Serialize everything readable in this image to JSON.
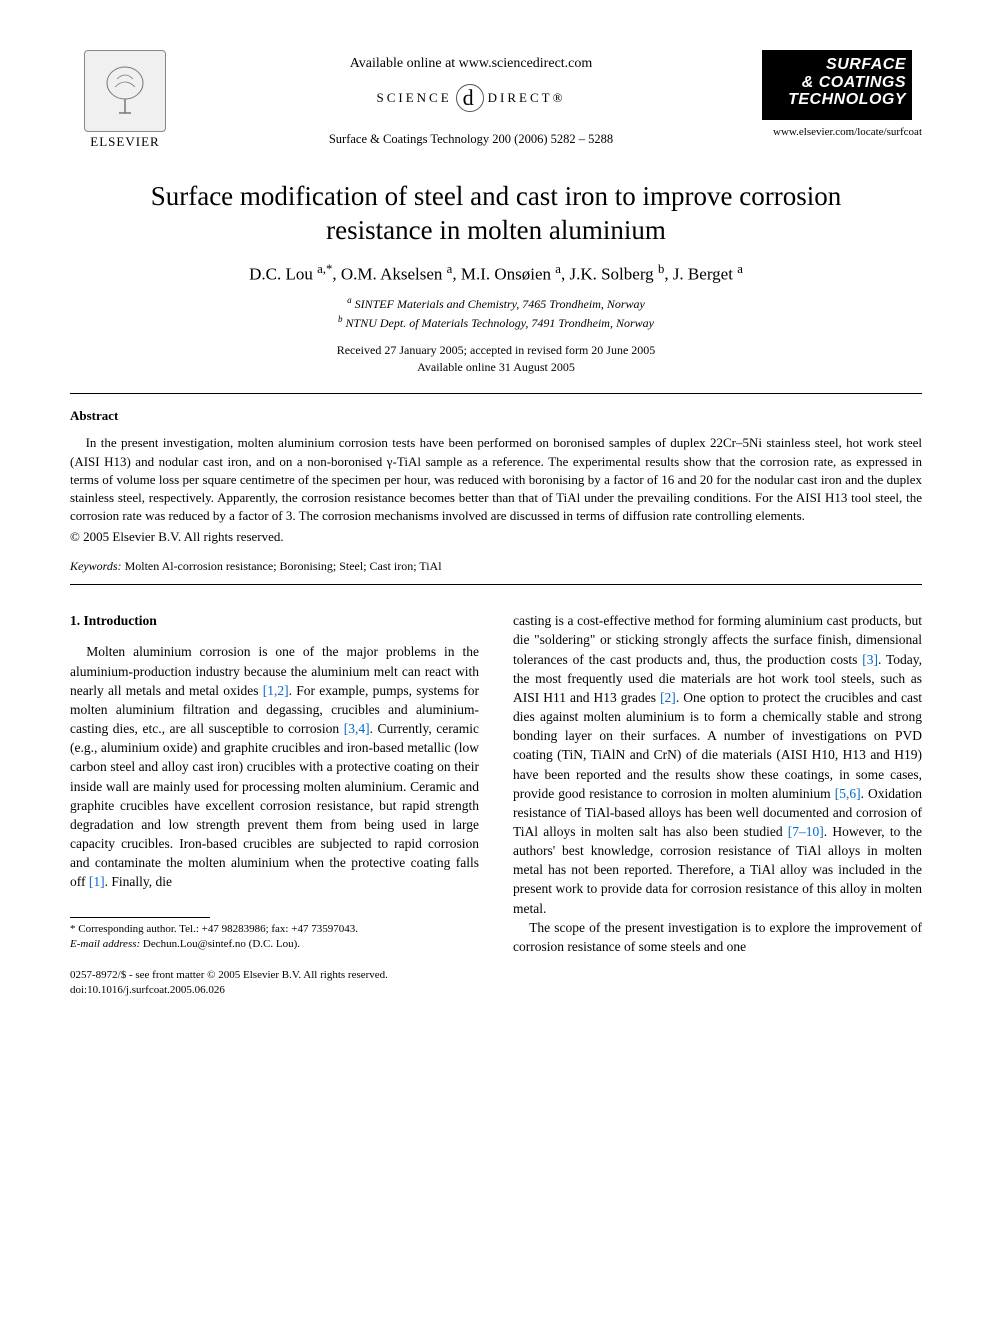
{
  "header": {
    "publisher_label": "ELSEVIER",
    "available_line": "Available online at www.sciencedirect.com",
    "sd_left": "SCIENCE",
    "sd_right": "DIRECT®",
    "journal_ref": "Surface & Coatings Technology 200 (2006) 5282 – 5288",
    "journal_logo_line1": "SURFACE",
    "journal_logo_line2": "& COATINGS",
    "journal_logo_line3": "TECHNOLOGY",
    "journal_url": "www.elsevier.com/locate/surfcoat"
  },
  "title": "Surface modification of steel and cast iron to improve corrosion resistance in molten aluminium",
  "authors_html": "D.C. Lou <sup>a,*</sup>, O.M. Akselsen <sup>a</sup>, M.I. Onsøien <sup>a</sup>, J.K. Solberg <sup>b</sup>, J. Berget <sup>a</sup>",
  "affiliations": {
    "a": "SINTEF Materials and Chemistry, 7465 Trondheim, Norway",
    "b": "NTNU Dept. of Materials Technology, 7491 Trondheim, Norway"
  },
  "dates": {
    "received": "Received 27 January 2005; accepted in revised form 20 June 2005",
    "online": "Available online 31 August 2005"
  },
  "abstract": {
    "heading": "Abstract",
    "text": "In the present investigation, molten aluminium corrosion tests have been performed on boronised samples of duplex 22Cr–5Ni stainless steel, hot work steel (AISI H13) and nodular cast iron, and on a non-boronised γ-TiAl sample as a reference. The experimental results show that the corrosion rate, as expressed in terms of volume loss per square centimetre of the specimen per hour, was reduced with boronising by a factor of 16 and 20 for the nodular cast iron and the duplex stainless steel, respectively. Apparently, the corrosion resistance becomes better than that of TiAl under the prevailing conditions. For the AISI H13 tool steel, the corrosion rate was reduced by a factor of 3. The corrosion mechanisms involved are discussed in terms of diffusion rate controlling elements.",
    "copyright": "© 2005 Elsevier B.V. All rights reserved."
  },
  "keywords": {
    "label": "Keywords:",
    "text": "Molten Al-corrosion resistance; Boronising; Steel; Cast iron; TiAl"
  },
  "section1": {
    "heading": "1. Introduction",
    "col1_pre": "Molten aluminium corrosion is one of the major problems in the aluminium-production industry because the aluminium melt can react with nearly all metals and metal oxides ",
    "cite1": "[1,2]",
    "col1_mid1": ". For example, pumps, systems for molten aluminium filtration and degassing, crucibles and aluminium-casting dies, etc., are all susceptible to corrosion ",
    "cite2": "[3,4]",
    "col1_mid2": ". Currently, ceramic (e.g., aluminium oxide) and graphite crucibles and iron-based metallic (low carbon steel and alloy cast iron) crucibles with a protective coating on their inside wall are mainly used for processing molten aluminium. Ceramic and graphite crucibles have excellent corrosion resistance, but rapid strength degradation and low strength prevent them from being used in large capacity crucibles. Iron-based crucibles are subjected to rapid corrosion and contaminate the molten aluminium when the protective coating falls off ",
    "cite3": "[1]",
    "col1_end": ". Finally, die",
    "col2_pre": "casting is a cost-effective method for forming aluminium cast products, but die \"soldering\" or sticking strongly affects the surface finish, dimensional tolerances of the cast products and, thus, the production costs ",
    "cite4": "[3]",
    "col2_mid1": ". Today, the most frequently used die materials are hot work tool steels, such as AISI H11 and H13 grades ",
    "cite5": "[2]",
    "col2_mid2": ". One option to protect the crucibles and cast dies against molten aluminium is to form a chemically stable and strong bonding layer on their surfaces. A number of investigations on PVD coating (TiN, TiAlN and CrN) of die materials (AISI H10, H13 and H19) have been reported and the results show these coatings, in some cases, provide good resistance to corrosion in molten aluminium ",
    "cite6": "[5,6]",
    "col2_mid3": ". Oxidation resistance of TiAl-based alloys has been well documented and corrosion of TiAl alloys in molten salt has also been studied ",
    "cite7": "[7–10]",
    "col2_mid4": ". However, to the authors' best knowledge, corrosion resistance of TiAl alloys in molten metal has not been reported. Therefore, a TiAl alloy was included in the present work to provide data for corrosion resistance of this alloy in molten metal.",
    "col2_p2": "The scope of the present investigation is to explore the improvement of corrosion resistance of some steels and one"
  },
  "footnote": {
    "corr": "* Corresponding author. Tel.: +47 98283986; fax: +47 73597043.",
    "email_label": "E-mail address:",
    "email": "Dechun.Lou@sintef.no (D.C. Lou)."
  },
  "footer": {
    "line1": "0257-8972/$ - see front matter © 2005 Elsevier B.V. All rights reserved.",
    "line2": "doi:10.1016/j.surfcoat.2005.06.026"
  },
  "colors": {
    "citation": "#0066cc",
    "text": "#000000",
    "background": "#ffffff",
    "logo_bg": "#000000",
    "logo_fg": "#ffffff"
  },
  "typography": {
    "title_fontsize": 27,
    "body_fontsize": 13.5,
    "abstract_fontsize": 13,
    "footnote_fontsize": 11
  }
}
